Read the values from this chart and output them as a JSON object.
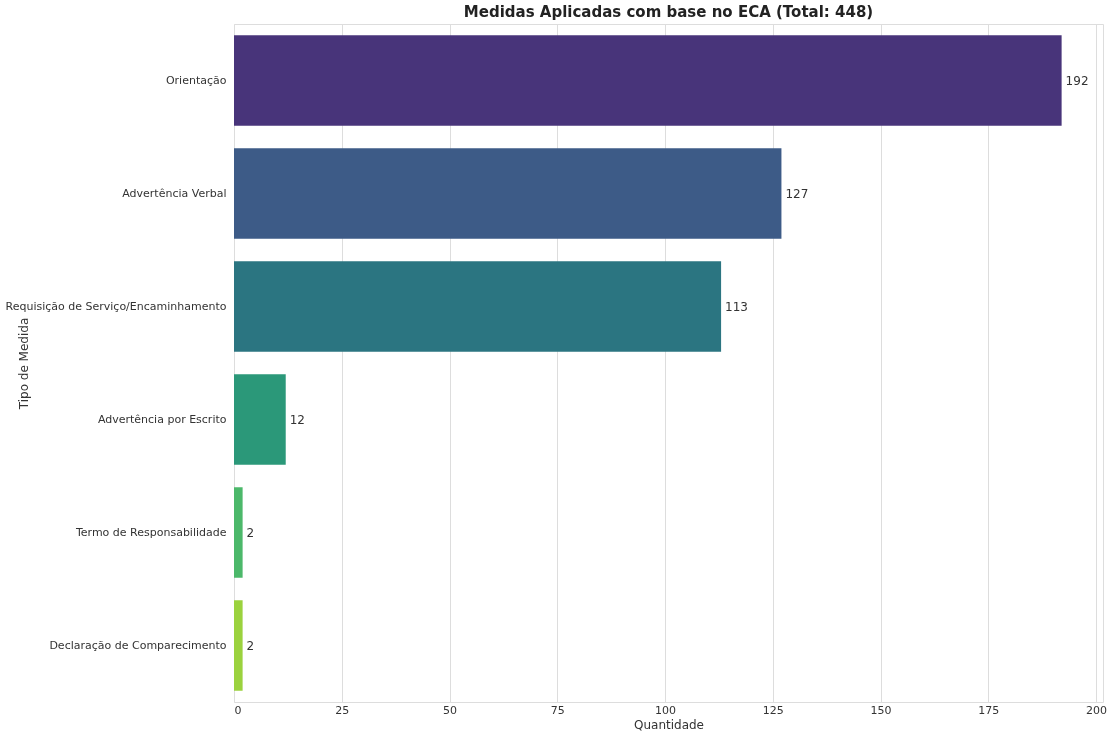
{
  "chart_data": {
    "type": "bar",
    "orientation": "horizontal",
    "title": "Medidas Aplicadas com base no ECA (Total: 448)",
    "xlabel": "Quantidade",
    "ylabel": "Tipo de Medida",
    "categories": [
      "Orientação",
      "Advertência Verbal",
      "Requisição de Serviço/Encaminhamento",
      "Advertência por Escrito",
      "Termo de Responsabilidade",
      "Declaração de Comparecimento"
    ],
    "values": [
      192,
      127,
      113,
      12,
      2,
      2
    ],
    "colors": [
      "#48347a",
      "#3d5b87",
      "#2b7581",
      "#2b9879",
      "#4cb86a",
      "#9bd23e"
    ],
    "xlim": [
      0,
      201.6
    ],
    "xticks": [
      0,
      25,
      50,
      75,
      100,
      125,
      150,
      175,
      200
    ],
    "grid": "x",
    "data_labels": true
  }
}
